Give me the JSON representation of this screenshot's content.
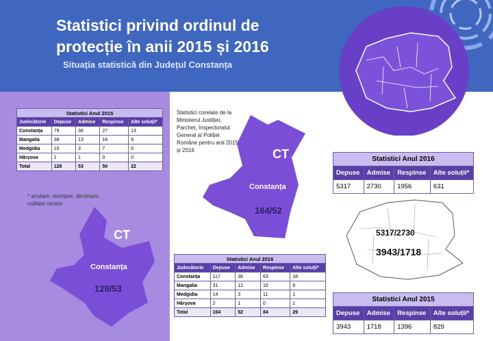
{
  "header": {
    "title_line1": "Statistici privind ordinul de",
    "title_line2": "protecție în anii 2015 și 2016",
    "subtitle": "Situația statistică din Județul Constanța"
  },
  "colors": {
    "banner": "#3f67c0",
    "panel": "#a78be0",
    "map_purple": "#6a3fc7"
  },
  "table_2015_left": {
    "caption": "Statistici Anul 2015",
    "headers": [
      "Judecătorie",
      "Depuse",
      "Admise",
      "Respinse",
      "Alte soluții*"
    ],
    "rows": [
      [
        "Constanța",
        "79",
        "36",
        "27",
        "13"
      ],
      [
        "Mangalia",
        "38",
        "13",
        "16",
        "9"
      ],
      [
        "Medgidia",
        "10",
        "3",
        "7",
        "0"
      ],
      [
        "Hârșova",
        "1",
        "1",
        "0",
        "0"
      ],
      [
        "Total",
        "128",
        "53",
        "50",
        "22"
      ]
    ]
  },
  "note": "* anulare, reunțare, declinare, nulitate cerere",
  "left_map": {
    "code": "CT",
    "county": "Constanța",
    "ratio": "128/53"
  },
  "side_text": "Statistici corelate de la Ministerul Justiției, Parchet, Inspectoratul General al Poliției Române pentru anii 2015 și 2016",
  "top_map": {
    "code": "CT",
    "county": "Constanța",
    "ratio": "164/52"
  },
  "table_2016_bottom": {
    "caption": "Statistici Anul 2016",
    "headers": [
      "Judecătorie",
      "Depuse",
      "Admise",
      "Respinse",
      "Alte soluții*"
    ],
    "rows": [
      [
        "Constanța",
        "117",
        "36",
        "63",
        "18"
      ],
      [
        "Mangalia",
        "31",
        "12",
        "10",
        "9"
      ],
      [
        "Medgidia",
        "14",
        "3",
        "11",
        "1"
      ],
      [
        "Hârșova",
        "2",
        "1",
        "0",
        "1"
      ],
      [
        "Total",
        "164",
        "52",
        "84",
        "29"
      ]
    ]
  },
  "table_2016_right": {
    "caption": "Statistici Anul 2016",
    "headers": [
      "Depuse",
      "Admise",
      "Respinse",
      "Alte soluții*"
    ],
    "values": [
      "5317",
      "2730",
      "1956",
      "631"
    ]
  },
  "romania_map": {
    "stat1": "5317/2730",
    "stat2": "3943/1718"
  },
  "table_2015_right": {
    "caption": "Statistici Anul 2015",
    "headers": [
      "Depuse",
      "Admise",
      "Respinse",
      "Alte soluții*"
    ],
    "values": [
      "3943",
      "1718",
      "1396",
      "829"
    ]
  }
}
